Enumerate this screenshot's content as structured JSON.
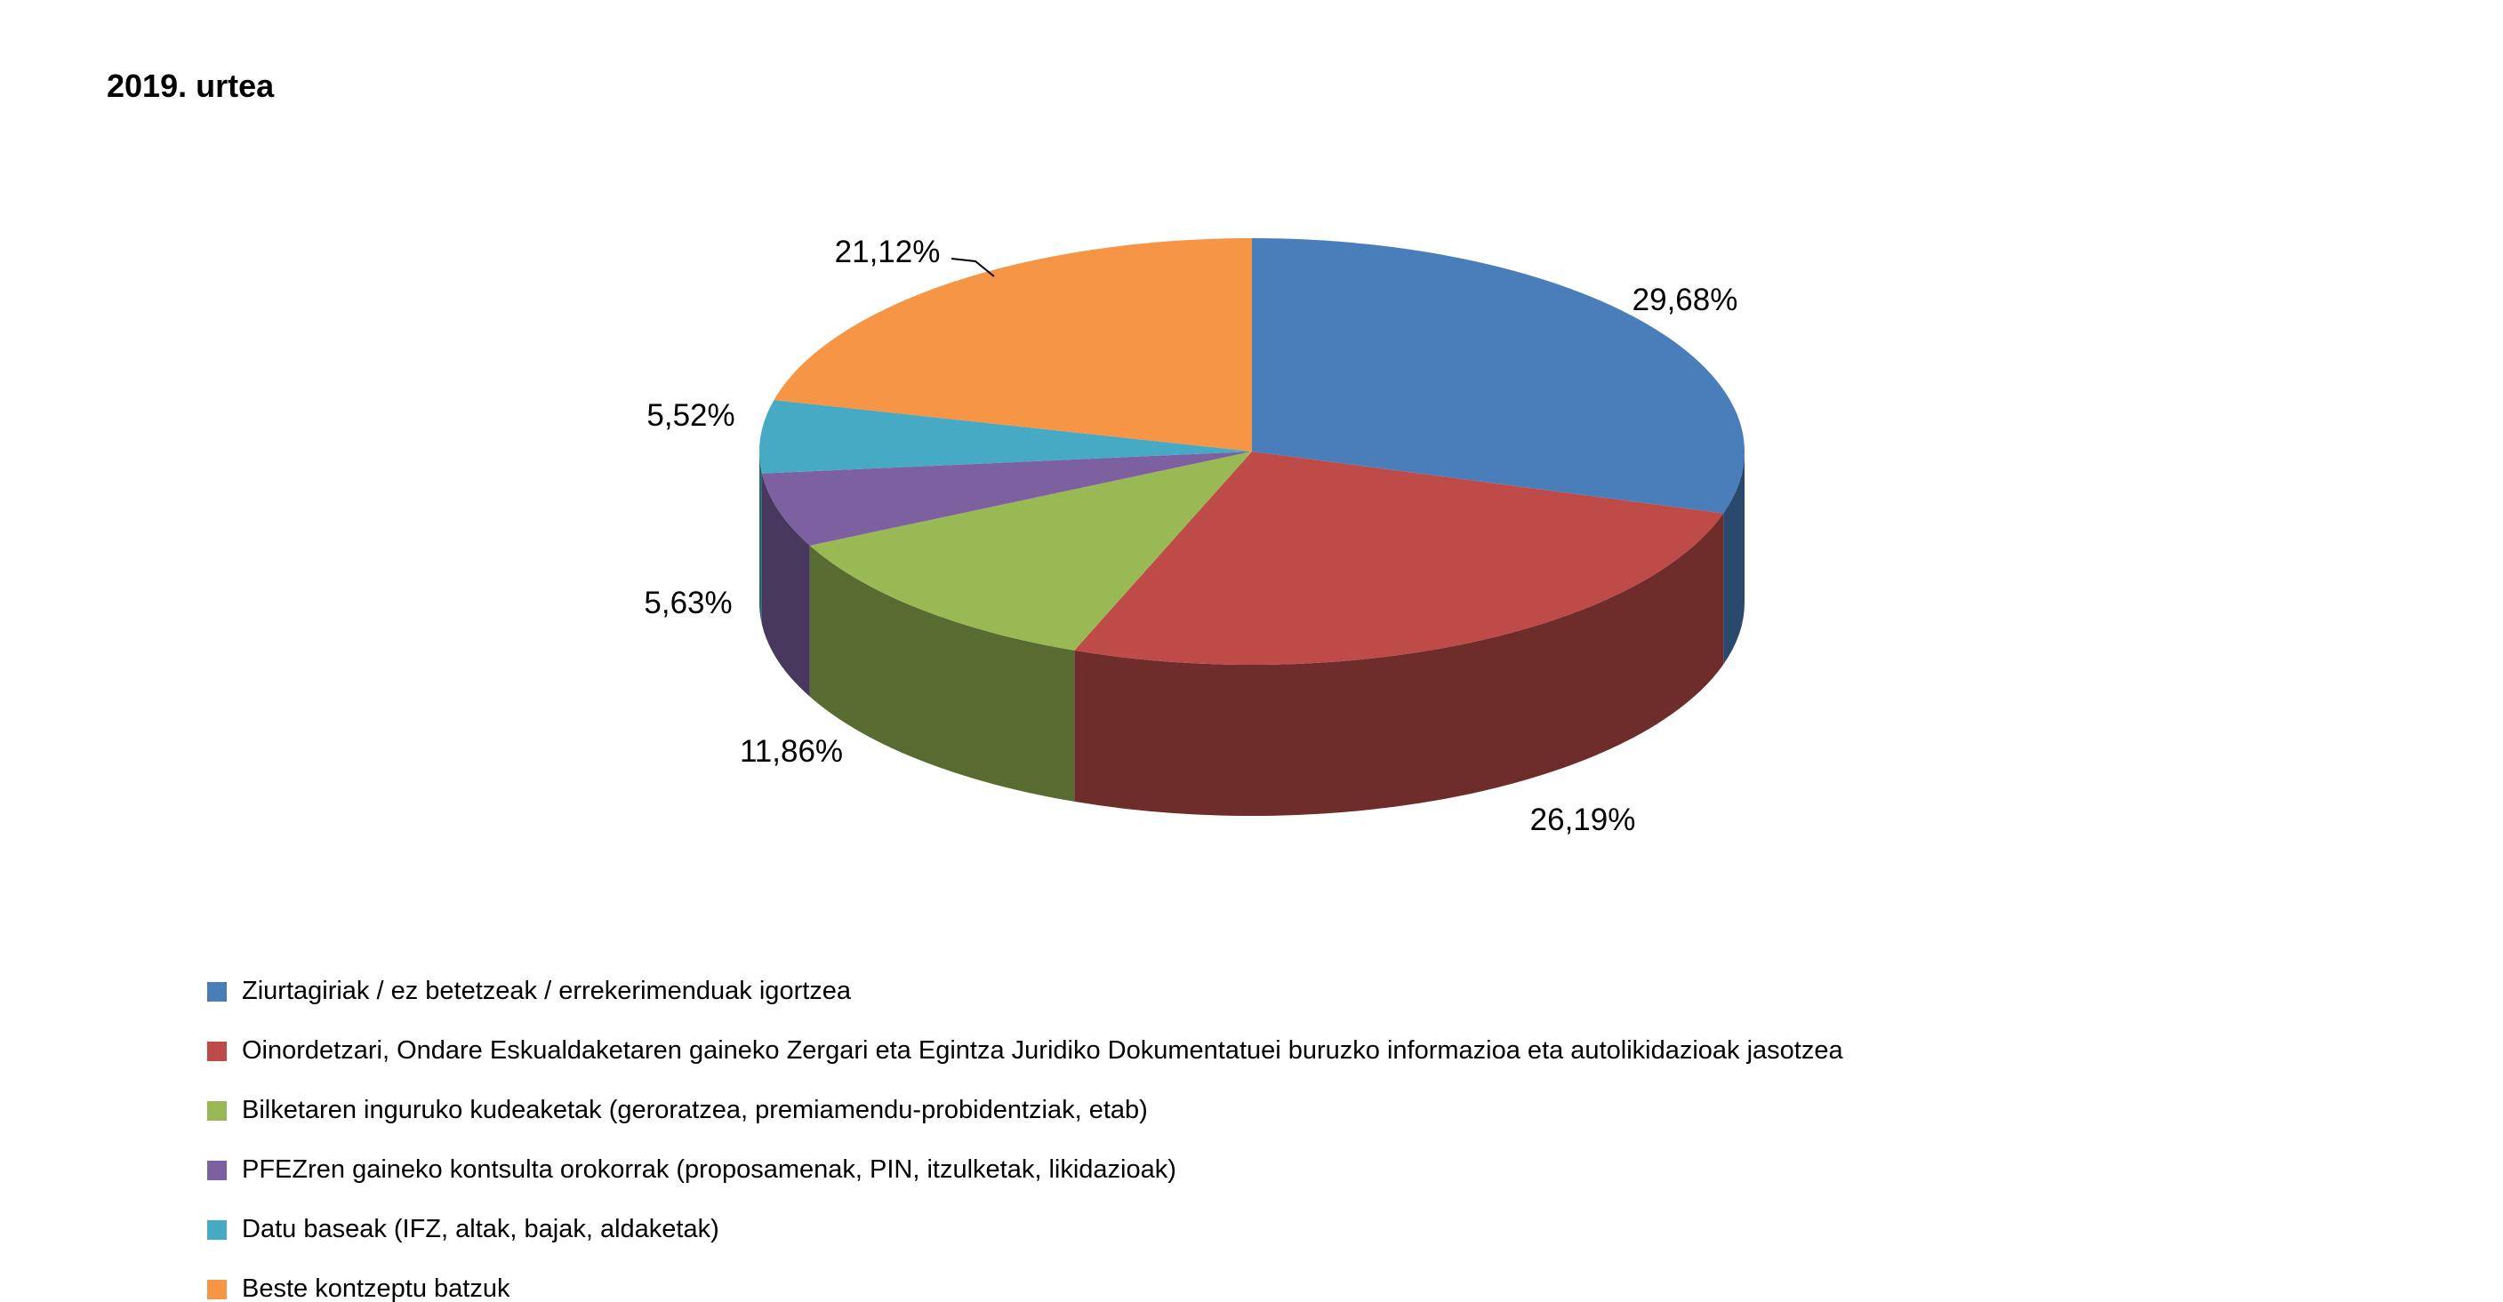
{
  "chart_data": {
    "type": "pie",
    "style": "3d",
    "title": "2019. urtea",
    "start_angle_deg": 0,
    "direction": "clockwise",
    "legend_position": "bottom-left",
    "background": "#FFFFFF",
    "text_color": "#000000",
    "categories": [
      "Ziurtagiriak / ez betetzeak / errekerimenduak igortzea",
      "Oinordetzari, Ondare Eskualdaketaren gaineko Zergari eta Egintza Juridiko Dokumentatuei buruzko informazioa eta autolikidazioak jasotzea",
      "Bilketaren inguruko kudeaketak (geroratzea, premiamendu-probidentziak, etab)",
      "PFEZren gaineko kontsulta orokorrak (proposamenak, PIN, itzulketak, likidazioak)",
      "Datu baseak (IFZ, altak, bajak, aldaketak)",
      "Beste kontzeptu batzuk"
    ],
    "values": [
      29.68,
      26.19,
      11.86,
      5.63,
      5.52,
      21.12
    ],
    "value_labels": [
      "29,68%",
      "26,19%",
      "11,86%",
      "5,63%",
      "5,52%",
      "21,12%"
    ],
    "colors": [
      "#4A7EBB",
      "#BE4B48",
      "#98B954",
      "#7D60A0",
      "#46AAC5",
      "#F69545"
    ]
  }
}
